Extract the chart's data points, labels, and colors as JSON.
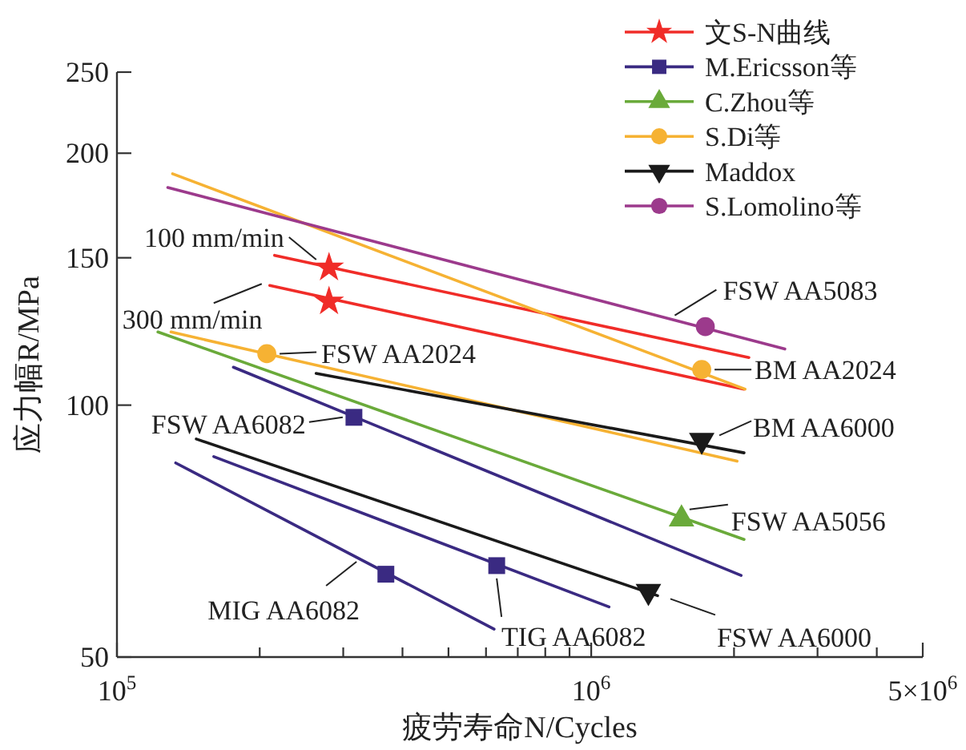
{
  "chart_data": {
    "type": "line",
    "xlabel": "疲劳寿命N/Cycles",
    "ylabel": "应力幅R/MPa",
    "log": "xy",
    "xlim": [
      100000,
      5000000
    ],
    "ylim": [
      50,
      250
    ],
    "xticks": [
      {
        "value": 100000,
        "label": "10$^{5}$"
      },
      {
        "value": 200000,
        "label": null
      },
      {
        "value": 300000,
        "label": null
      },
      {
        "value": 400000,
        "label": null
      },
      {
        "value": 500000,
        "label": null
      },
      {
        "value": 600000,
        "label": null
      },
      {
        "value": 700000,
        "label": null
      },
      {
        "value": 800000,
        "label": null
      },
      {
        "value": 900000,
        "label": null
      },
      {
        "value": 1000000,
        "label": "10$^{6}$"
      },
      {
        "value": 2000000,
        "label": null
      },
      {
        "value": 3000000,
        "label": null
      },
      {
        "value": 4000000,
        "label": null
      },
      {
        "value": 5000000,
        "label": "5×10$^{6}$"
      }
    ],
    "yticks": [
      50,
      100,
      150,
      200,
      250
    ],
    "grid": false,
    "legend": "top right",
    "series": [
      {
        "type": "line",
        "color": "#f02c28",
        "x": [
          215000,
          2150000
        ],
        "values": [
          151,
          114
        ]
      },
      {
        "type": "line",
        "color": "#f02c28",
        "x": [
          210000,
          2100000
        ],
        "values": [
          139,
          104.5
        ]
      },
      {
        "type": "line",
        "color": "#3a2a82",
        "x": [
          176000,
          2070000
        ],
        "values": [
          111,
          62.6
        ]
      },
      {
        "type": "line",
        "color": "#3a2a82",
        "x": [
          160000,
          1090000
        ],
        "values": [
          86.8,
          57.4
        ]
      },
      {
        "type": "line",
        "color": "#3a2a82",
        "x": [
          133000,
          624000
        ],
        "values": [
          85.3,
          54
        ]
      },
      {
        "type": "line",
        "color": "#6aaa3a",
        "x": [
          122000,
          2100000
        ],
        "values": [
          122.3,
          69.1
        ]
      },
      {
        "type": "line",
        "color": "#f6b233",
        "x": [
          131000,
          2110000
        ],
        "values": [
          189,
          104.5
        ]
      },
      {
        "type": "line",
        "color": "#f6b233",
        "x": [
          130000,
          2030000
        ],
        "values": [
          122.3,
          85.7
        ]
      },
      {
        "type": "line",
        "color": "#1a1a1a",
        "x": [
          263000,
          2100000
        ],
        "values": [
          109.1,
          87.7
        ]
      },
      {
        "type": "line",
        "color": "#1a1a1a",
        "x": [
          147000,
          1380000
        ],
        "values": [
          91.1,
          59.2
        ]
      },
      {
        "type": "line",
        "color": "#9c3a8c",
        "x": [
          128000,
          2560000
        ],
        "values": [
          182,
          116.7
        ]
      },
      {
        "type": "scatter",
        "name": "文S-N曲线",
        "color": "#f02c28",
        "marker": "star",
        "x": [
          280000,
          280000
        ],
        "values": [
          146,
          133
        ]
      },
      {
        "type": "scatter",
        "name": "M.Ericsson等",
        "color": "#3a2a82",
        "marker": "square",
        "x": [
          316000,
          632000,
          369000
        ],
        "values": [
          96.7,
          64.3,
          62.8
        ]
      },
      {
        "type": "scatter",
        "name": "C.Zhou等",
        "color": "#6aaa3a",
        "marker": "triangle",
        "x": [
          1550000
        ],
        "values": [
          73.1
        ]
      },
      {
        "type": "scatter",
        "name": "S.Di等",
        "color": "#f6b233",
        "marker": "circle",
        "x": [
          207000,
          1710000
        ],
        "values": [
          115.2,
          110.3
        ]
      },
      {
        "type": "scatter",
        "name": "Maddox",
        "color": "#1a1a1a",
        "marker": "triangle-down",
        "x": [
          1320000,
          1710000
        ],
        "values": [
          59.9,
          90.8
        ]
      },
      {
        "type": "scatter",
        "name": "S.Lomolino等",
        "color": "#9c3a8c",
        "marker": "circle",
        "x": [
          1740000
        ],
        "values": [
          124.1
        ]
      }
    ],
    "annotations": [
      {
        "text": "100 mm/min",
        "x": 280000,
        "y": 146
      },
      {
        "text": "300 mm/min",
        "x": 210000,
        "y": 139
      },
      {
        "text": "FSW AA2024",
        "x": 207000,
        "y": 115.2
      },
      {
        "text": "FSW AA6082",
        "x": 316000,
        "y": 96.7
      },
      {
        "text": "MIG AA6082",
        "x": 320000,
        "y": 65
      },
      {
        "text": "TIG AA6082",
        "x": 632000,
        "y": 64.3
      },
      {
        "text": "FSW AA6000",
        "x": 1380000,
        "y": 59.2
      },
      {
        "text": "FSW AA5056",
        "x": 1550000,
        "y": 73.1
      },
      {
        "text": "BM AA6000",
        "x": 1710000,
        "y": 90.8
      },
      {
        "text": "BM AA2024",
        "x": 1710000,
        "y": 110.3
      },
      {
        "text": "FSW AA5083",
        "x": 1500000,
        "y": 128
      }
    ]
  }
}
